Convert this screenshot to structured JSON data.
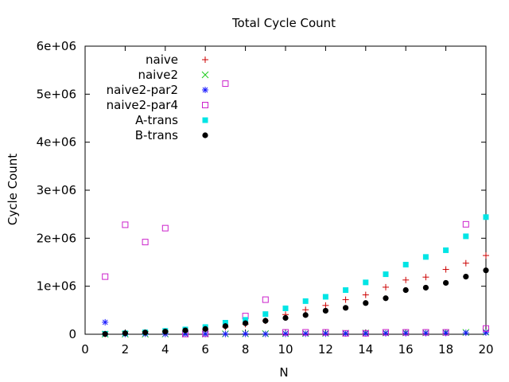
{
  "chart_data": {
    "type": "scatter",
    "title": "Total Cycle Count",
    "xlabel": "N",
    "ylabel": "Cycle Count",
    "xlim": [
      0,
      20
    ],
    "ylim": [
      0,
      6000000
    ],
    "xticks": [
      0,
      2,
      4,
      6,
      8,
      10,
      12,
      14,
      16,
      18,
      20
    ],
    "xtick_labels": [
      "0",
      "2",
      "4",
      "6",
      "8",
      "10",
      "12",
      "14",
      "16",
      "18",
      "20"
    ],
    "yticks": [
      0,
      1000000,
      2000000,
      3000000,
      4000000,
      5000000,
      6000000
    ],
    "ytick_labels": [
      "0",
      "1e+06",
      "2e+06",
      "3e+06",
      "4e+06",
      "5e+06",
      "6e+06"
    ],
    "grid": false,
    "legend_position": "top-left",
    "x": [
      1,
      2,
      3,
      4,
      5,
      6,
      7,
      8,
      9,
      10,
      11,
      12,
      13,
      14,
      15,
      16,
      17,
      18,
      19,
      20
    ],
    "series": [
      {
        "name": "naive",
        "marker": "plus",
        "color": "#cc0000",
        "values": [
          5000,
          10000,
          20000,
          35000,
          60000,
          100000,
          150000,
          210000,
          280000,
          410000,
          510000,
          600000,
          720000,
          820000,
          980000,
          1130000,
          1190000,
          1350000,
          1480000,
          1640000
        ]
      },
      {
        "name": "naive2",
        "marker": "x",
        "color": "#22cc22",
        "values": [
          2000,
          2000,
          2000,
          5000,
          5000,
          5000,
          8000,
          10000,
          12000,
          15000,
          18000,
          22000,
          22000,
          25000,
          28000,
          30000,
          30000,
          35000,
          38000,
          45000
        ]
      },
      {
        "name": "naive2-par2",
        "marker": "star",
        "color": "#1a1aff",
        "values": [
          250000,
          5000,
          10000,
          5000,
          8000,
          5000,
          5000,
          8000,
          5000,
          8000,
          10000,
          12000,
          15000,
          15000,
          18000,
          20000,
          22000,
          25000,
          30000,
          35000
        ]
      },
      {
        "name": "naive2-par4",
        "marker": "open-square",
        "color": "#cc22cc",
        "values": [
          1200000,
          2280000,
          1920000,
          2210000,
          5000,
          10000,
          5220000,
          380000,
          720000,
          40000,
          40000,
          40000,
          20000,
          20000,
          40000,
          40000,
          40000,
          40000,
          2290000,
          120000
        ]
      },
      {
        "name": "A-trans",
        "marker": "filled-square",
        "color": "#00e5e5",
        "values": [
          10000,
          20000,
          40000,
          70000,
          100000,
          150000,
          240000,
          300000,
          420000,
          540000,
          690000,
          780000,
          920000,
          1080000,
          1250000,
          1450000,
          1610000,
          1750000,
          2040000,
          2440000
        ]
      },
      {
        "name": "B-trans",
        "marker": "filled-circle",
        "color": "#000000",
        "values": [
          5000,
          20000,
          35000,
          55000,
          80000,
          110000,
          170000,
          230000,
          280000,
          340000,
          400000,
          490000,
          550000,
          650000,
          750000,
          920000,
          970000,
          1070000,
          1200000,
          1330000
        ]
      }
    ]
  }
}
